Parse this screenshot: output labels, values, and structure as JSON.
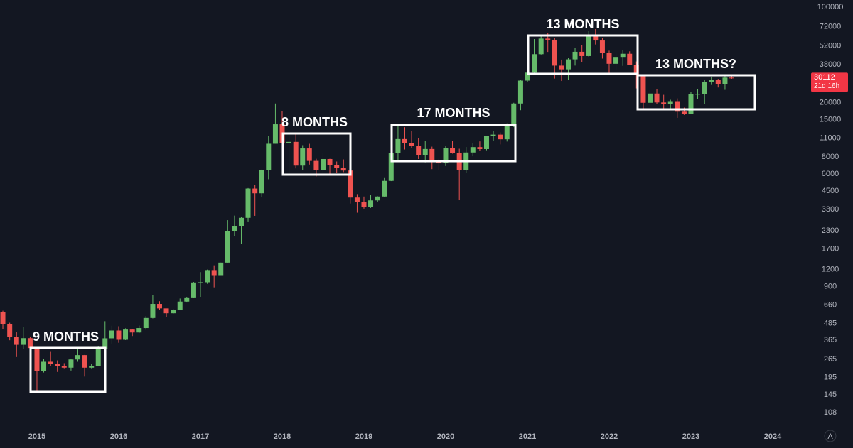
{
  "chart_data": {
    "type": "candlestick",
    "x": [
      2014.583,
      2014.667,
      2014.75,
      2014.833,
      2014.917,
      2015,
      2015.083,
      2015.167,
      2015.25,
      2015.333,
      2015.417,
      2015.5,
      2015.583,
      2015.667,
      2015.75,
      2015.833,
      2015.917,
      2016,
      2016.083,
      2016.167,
      2016.25,
      2016.333,
      2016.417,
      2016.5,
      2016.583,
      2016.667,
      2016.75,
      2016.833,
      2016.917,
      2017,
      2017.083,
      2017.167,
      2017.25,
      2017.333,
      2017.417,
      2017.5,
      2017.583,
      2017.667,
      2017.75,
      2017.833,
      2017.917,
      2018,
      2018.083,
      2018.167,
      2018.25,
      2018.333,
      2018.417,
      2018.5,
      2018.583,
      2018.667,
      2018.75,
      2018.833,
      2018.917,
      2019,
      2019.083,
      2019.167,
      2019.25,
      2019.333,
      2019.417,
      2019.5,
      2019.583,
      2019.667,
      2019.75,
      2019.833,
      2019.917,
      2020,
      2020.083,
      2020.167,
      2020.25,
      2020.333,
      2020.417,
      2020.5,
      2020.583,
      2020.667,
      2020.75,
      2020.833,
      2020.917,
      2021,
      2021.083,
      2021.167,
      2021.25,
      2021.333,
      2021.417,
      2021.5,
      2021.583,
      2021.667,
      2021.75,
      2021.833,
      2021.917,
      2022,
      2022.083,
      2022.167,
      2022.25,
      2022.333,
      2022.417,
      2022.5,
      2022.583,
      2022.667,
      2022.75,
      2022.833,
      2022.917,
      2023,
      2023.083,
      2023.167,
      2023.25,
      2023.333,
      2023.417,
      2023.5
    ],
    "open": [
      586,
      478,
      387,
      338,
      378,
      320,
      218,
      254,
      244,
      236,
      230,
      264,
      284,
      230,
      236,
      314,
      377,
      430,
      368,
      437,
      416,
      448,
      531,
      673,
      624,
      575,
      609,
      700,
      742,
      966,
      970,
      1190,
      1080,
      1350,
      2300,
      2480,
      2870,
      4700,
      4340,
      6440,
      10000,
      13880,
      10100,
      10320,
      6920,
      9240,
      7490,
      6390,
      7730,
      7020,
      6630,
      6370,
      4040,
      3740,
      3460,
      3850,
      4110,
      5350,
      8580,
      10820,
      10080,
      9600,
      8290,
      9150,
      7560,
      7190,
      9350,
      8540,
      6420,
      8630,
      9450,
      9140,
      11350,
      11660,
      10780,
      13800,
      19700,
      28990,
      33140,
      45240,
      58800,
      57700,
      37300,
      35040,
      41460,
      47100,
      43820,
      61300,
      56950,
      46200,
      38480,
      43190,
      45540,
      37640,
      31790,
      19940,
      23300,
      20050,
      19420,
      20490,
      17170,
      16540,
      23140,
      23150,
      28480,
      29240,
      27220,
      30470
    ],
    "high": [
      600,
      490,
      417,
      458,
      384,
      320,
      268,
      300,
      260,
      248,
      268,
      317,
      285,
      245,
      330,
      503,
      466,
      462,
      446,
      438,
      467,
      548,
      778,
      704,
      623,
      617,
      737,
      752,
      975,
      1150,
      1200,
      1290,
      1350,
      2760,
      2980,
      2920,
      4740,
      5000,
      6470,
      11400,
      19700,
      17250,
      11800,
      11700,
      9760,
      9990,
      7760,
      8500,
      7760,
      7410,
      7680,
      6550,
      4280,
      4110,
      4200,
      4130,
      5610,
      9100,
      13880,
      13200,
      12330,
      10950,
      10540,
      9520,
      7750,
      9580,
      10500,
      9190,
      9460,
      10070,
      10400,
      11450,
      12470,
      12100,
      14100,
      19950,
      29300,
      41970,
      58350,
      61800,
      64850,
      59500,
      41300,
      42400,
      50500,
      52920,
      67000,
      69000,
      59100,
      47990,
      45800,
      48190,
      47440,
      40000,
      31980,
      24670,
      25200,
      22800,
      20990,
      21470,
      18390,
      23950,
      25250,
      29190,
      31000,
      29840,
      31390,
      31500
    ],
    "low": [
      440,
      365,
      275,
      315,
      305,
      152,
      212,
      235,
      214,
      225,
      219,
      254,
      198,
      225,
      236,
      300,
      345,
      350,
      366,
      392,
      412,
      436,
      527,
      605,
      537,
      570,
      605,
      689,
      741,
      750,
      945,
      890,
      1080,
      1350,
      2100,
      1840,
      2700,
      2970,
      4100,
      5500,
      10000,
      9000,
      6000,
      6600,
      6430,
      7040,
      5770,
      6070,
      5880,
      6120,
      6200,
      3650,
      3130,
      3350,
      3390,
      3740,
      4080,
      5330,
      7500,
      9080,
      9330,
      7730,
      7300,
      6520,
      6430,
      6870,
      8460,
      3860,
      6160,
      8100,
      8830,
      8960,
      10520,
      9890,
      10380,
      13230,
      17600,
      28130,
      32300,
      44950,
      47000,
      30000,
      28800,
      29300,
      37330,
      39600,
      43280,
      53250,
      42000,
      32900,
      34320,
      37160,
      37700,
      25400,
      17600,
      18780,
      19520,
      18150,
      18190,
      15480,
      16260,
      16500,
      21350,
      19550,
      26940,
      25810,
      24800,
      29900
    ],
    "close": [
      478,
      387,
      338,
      378,
      320,
      218,
      254,
      244,
      236,
      230,
      264,
      284,
      230,
      236,
      314,
      377,
      430,
      368,
      437,
      416,
      448,
      531,
      673,
      624,
      575,
      609,
      700,
      742,
      966,
      970,
      1190,
      1080,
      1350,
      2300,
      2480,
      2870,
      4700,
      4340,
      6440,
      10000,
      13880,
      10100,
      10320,
      6920,
      9240,
      7490,
      6390,
      7730,
      7020,
      6630,
      6370,
      4040,
      3740,
      3460,
      3850,
      4110,
      5350,
      8580,
      10820,
      10080,
      9600,
      8290,
      9150,
      7560,
      7190,
      9350,
      8540,
      6420,
      8630,
      9450,
      9140,
      11350,
      11660,
      10780,
      13800,
      19700,
      28990,
      33140,
      45240,
      58800,
      57700,
      37300,
      35040,
      41460,
      47100,
      43820,
      61300,
      56950,
      46200,
      38480,
      43190,
      45540,
      37640,
      31790,
      19940,
      23300,
      20050,
      19420,
      20490,
      17170,
      16540,
      23140,
      23150,
      28480,
      29240,
      27220,
      30470,
      30112
    ],
    "up_color": "#66bb6a",
    "down_color": "#ef5350",
    "log_y": true,
    "grid": false,
    "xlim": [
      2014.548,
      2024.461
    ],
    "xticks": [
      2015,
      2016,
      2017,
      2018,
      2019,
      2020,
      2021,
      2022,
      2023,
      2024
    ],
    "ylim": [
      86,
      112700
    ],
    "yticks": [
      100000,
      72000,
      52000,
      38000,
      20000,
      15000,
      11000,
      8000,
      6000,
      4500,
      3300,
      2300,
      1700,
      1200,
      900,
      660,
      485,
      365,
      265,
      195,
      145,
      108
    ],
    "countdown": "21d 16h",
    "scale_button": "A",
    "annotations": [
      "9 MONTHS",
      "8 MONTHS",
      "17 MONTHS",
      "13 MONTHS",
      "13 MONTHS?"
    ]
  }
}
